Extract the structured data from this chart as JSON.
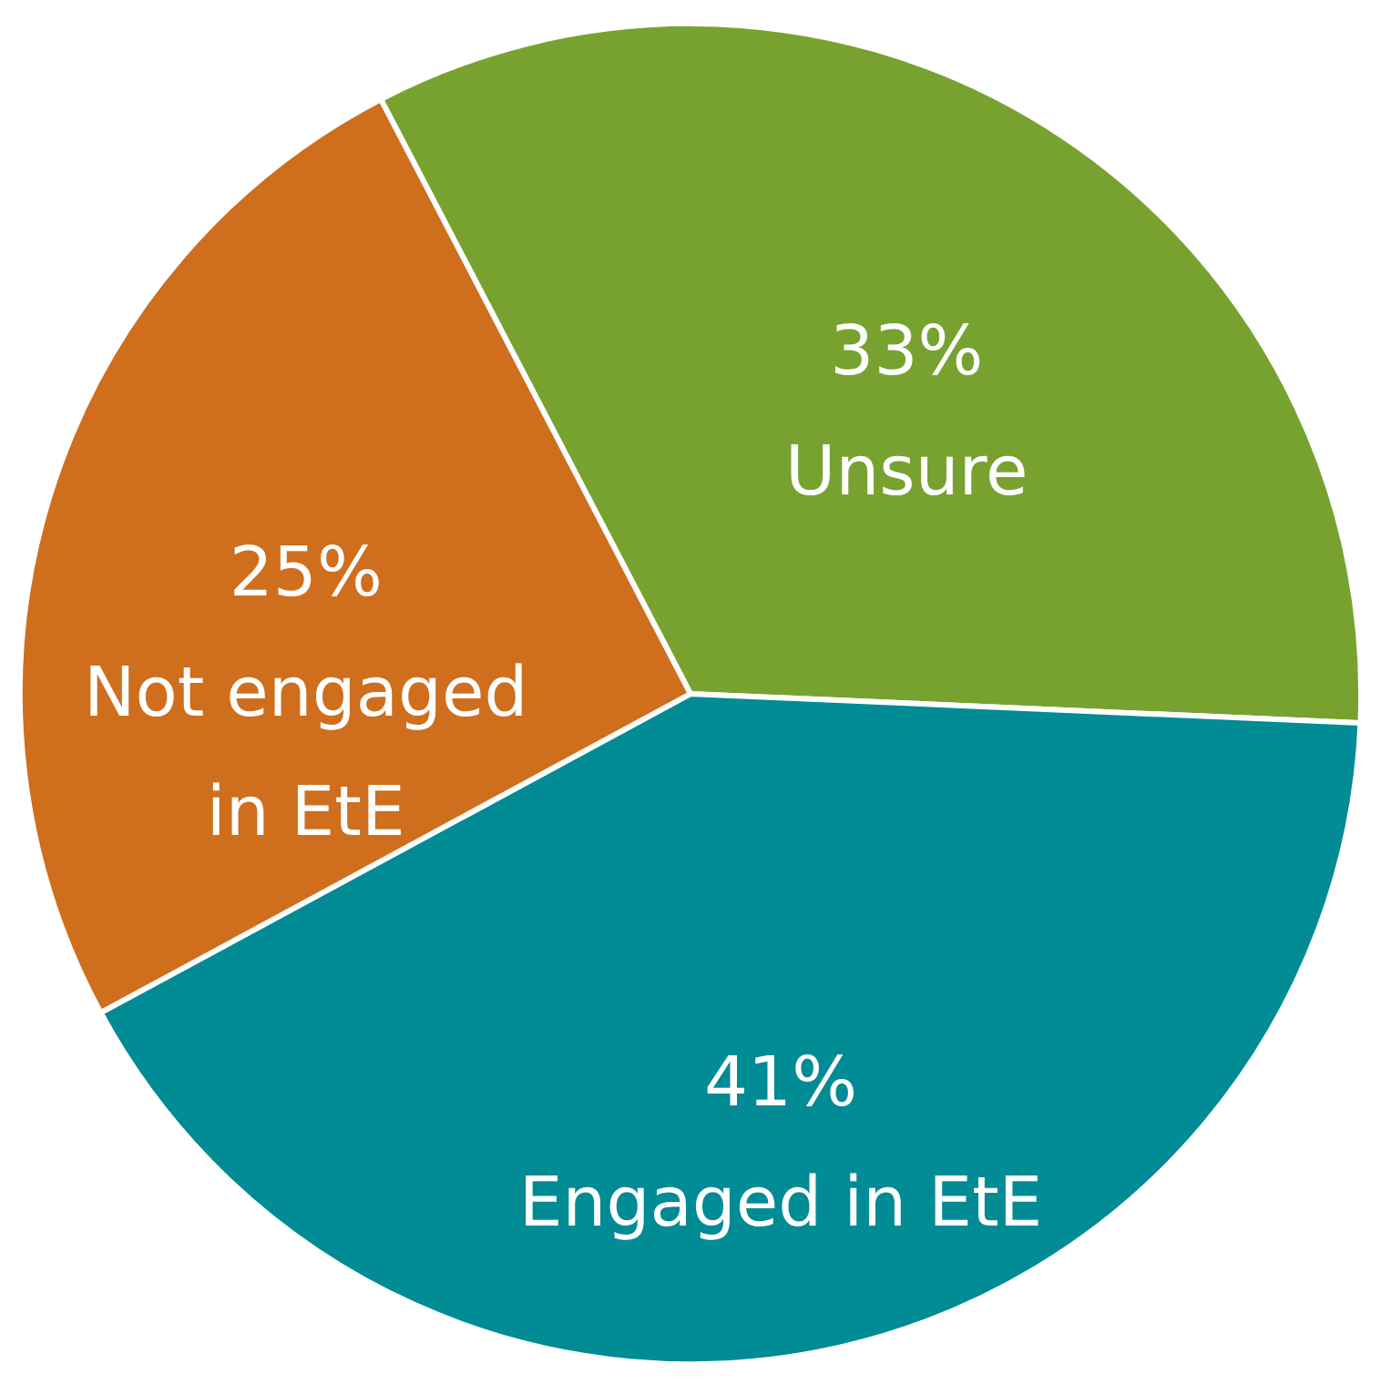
{
  "chart_data": {
    "type": "pie",
    "categories": [
      "Unsure",
      "Engaged in EtE",
      "Not engaged in EtE"
    ],
    "values": [
      33,
      41,
      25
    ],
    "value_labels": [
      "33%",
      "41%",
      "25%"
    ],
    "colors": [
      "#78a22f",
      "#008b95",
      "#cf6e1c"
    ],
    "legend": false
  }
}
